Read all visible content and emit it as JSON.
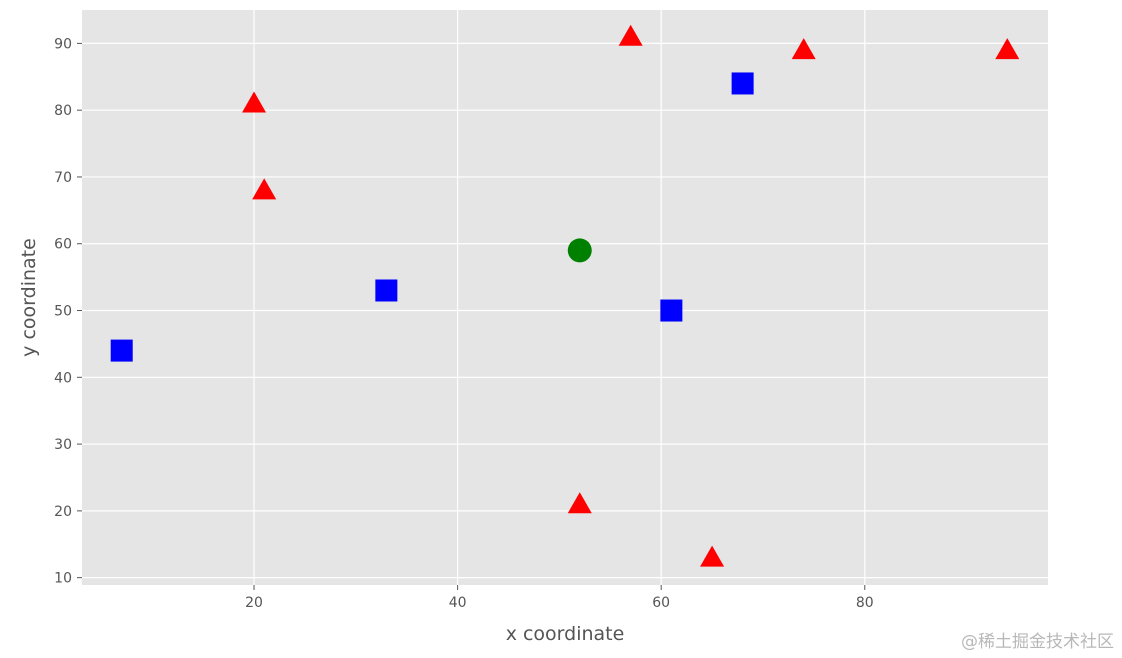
{
  "chart_data": {
    "type": "scatter",
    "title": "",
    "xlabel": "x coordinate",
    "ylabel": "y coordinate",
    "xlim": [
      3.1,
      98
    ],
    "ylim": [
      8.9,
      95
    ],
    "xticks": [
      20,
      40,
      60,
      80
    ],
    "yticks": [
      10,
      20,
      30,
      40,
      50,
      60,
      70,
      80,
      90
    ],
    "grid": true,
    "legend": "none",
    "background_color": "#e5e5e5",
    "grid_color": "#ffffff",
    "series": [
      {
        "marker": "triangle",
        "color": "#ff0000",
        "points": [
          {
            "x": 20,
            "y": 81
          },
          {
            "x": 21,
            "y": 68
          },
          {
            "x": 57,
            "y": 91
          },
          {
            "x": 74,
            "y": 89
          },
          {
            "x": 94,
            "y": 89
          },
          {
            "x": 52,
            "y": 21
          },
          {
            "x": 65,
            "y": 13
          }
        ]
      },
      {
        "marker": "square",
        "color": "#0000ff",
        "points": [
          {
            "x": 7,
            "y": 44
          },
          {
            "x": 33,
            "y": 53
          },
          {
            "x": 61,
            "y": 50
          },
          {
            "x": 68,
            "y": 84
          }
        ]
      },
      {
        "marker": "circle",
        "color": "#008000",
        "points": [
          {
            "x": 52,
            "y": 59
          }
        ]
      }
    ]
  },
  "watermark": "@稀土掘金技术社区"
}
